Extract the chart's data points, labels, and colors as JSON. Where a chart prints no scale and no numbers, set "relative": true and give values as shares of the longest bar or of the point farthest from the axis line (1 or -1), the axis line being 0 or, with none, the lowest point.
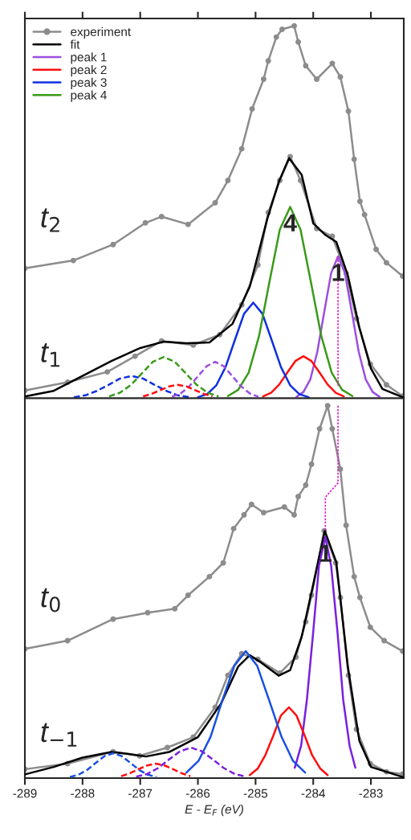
{
  "chart_data": [
    {
      "type": "line",
      "relative": true,
      "xlim": [
        -289,
        -282.43
      ],
      "xticks": [
        -289,
        -288,
        -287,
        -286,
        -285,
        -284,
        -283
      ],
      "tick_labels": false,
      "legend": "top left",
      "grid": false,
      "annotations": [
        "t$_{2}$",
        "t$_{1}$",
        {
          "text": "4",
          "x": -284.4,
          "y": 0.514
        },
        {
          "text": "1",
          "x": -283.57,
          "y": 0.381
        }
      ],
      "series": [
        {
          "name": "experiment",
          "color": "#8c8c8c",
          "marker": "circle",
          "x": [
            -289.0,
            -288.16,
            -287.47,
            -286.91,
            -286.63,
            -286.17,
            -285.7,
            -285.48,
            -285.24,
            -285.06,
            -284.86,
            -284.78,
            -284.64,
            -284.54,
            -284.33,
            -284.26,
            -284.13,
            -283.94,
            -283.67,
            -283.53,
            -283.39,
            -283.29,
            -283.19,
            -283.11,
            -282.91,
            -282.73,
            -282.45
          ],
          "values": [
            0.349,
            0.37,
            0.413,
            0.471,
            0.488,
            0.467,
            0.525,
            0.585,
            0.67,
            0.777,
            0.857,
            0.906,
            0.97,
            0.991,
            1.0,
            0.957,
            0.893,
            0.857,
            0.899,
            0.863,
            0.771,
            0.642,
            0.529,
            0.493,
            0.4,
            0.364,
            0.328
          ]
        },
        {
          "color": "#8c8c8c",
          "marker": "circle",
          "x": [
            -289.0,
            -288.26,
            -287.57,
            -287.09,
            -286.63,
            -286.08,
            -285.62,
            -285.24,
            -284.96,
            -284.78,
            -284.58,
            -284.4,
            -284.22,
            -283.94,
            -283.67,
            -283.43,
            -283.25,
            -283.01,
            -282.73,
            -282.45
          ],
          "values": [
            0.021,
            0.043,
            0.071,
            0.113,
            0.154,
            0.143,
            0.171,
            0.251,
            0.358,
            0.499,
            0.585,
            0.649,
            0.585,
            0.456,
            0.435,
            0.336,
            0.214,
            0.092,
            0.036,
            0.006
          ]
        },
        {
          "name": "fit",
          "color": "#000000",
          "x": [
            -289,
            -288.5,
            -288,
            -287.5,
            -287,
            -286.6,
            -286.2,
            -285.8,
            -285.4,
            -285.1,
            -284.8,
            -284.6,
            -284.42,
            -284.2,
            -284,
            -283.8,
            -283.6,
            -283.4,
            -283.2,
            -283,
            -282.8,
            -282.45
          ],
          "values": [
            0.005,
            0.02,
            0.06,
            0.1,
            0.135,
            0.152,
            0.148,
            0.15,
            0.2,
            0.3,
            0.48,
            0.58,
            0.645,
            0.6,
            0.47,
            0.44,
            0.42,
            0.33,
            0.19,
            0.08,
            0.025,
            0.003
          ]
        },
        {
          "name": "peak 1",
          "color": "#9b4fe0",
          "x": [
            -284.29,
            -284.17,
            -284.05,
            -283.93,
            -283.81,
            -283.69,
            -283.57,
            -283.45,
            -283.33,
            -283.21,
            -283.09,
            -282.97,
            -282.85
          ],
          "values": [
            0.004,
            0.017,
            0.051,
            0.124,
            0.231,
            0.336,
            0.381,
            0.336,
            0.231,
            0.124,
            0.051,
            0.017,
            0.004
          ]
        },
        {
          "name": "peak 2",
          "color": "#ff1010",
          "x": [
            -284.87,
            -284.73,
            -284.59,
            -284.45,
            -284.31,
            -284.17,
            -284.03,
            -283.89,
            -283.75,
            -283.61,
            -283.47
          ],
          "values": [
            0.005,
            0.015,
            0.037,
            0.069,
            0.1,
            0.113,
            0.1,
            0.069,
            0.037,
            0.015,
            0.005
          ]
        },
        {
          "name": "peak 3",
          "color": "#1030e0",
          "x": [
            -286.0,
            -285.84,
            -285.68,
            -285.52,
            -285.36,
            -285.2,
            -285.04,
            -284.88,
            -284.72,
            -284.56,
            -284.4,
            -284.24,
            -284.08
          ],
          "values": [
            0.003,
            0.011,
            0.035,
            0.084,
            0.156,
            0.227,
            0.257,
            0.227,
            0.156,
            0.084,
            0.035,
            0.011,
            0.003
          ]
        },
        {
          "name": "peak 4",
          "color": "#3a9a1a",
          "x": [
            -285.48,
            -285.3,
            -285.12,
            -284.94,
            -284.76,
            -284.58,
            -284.4,
            -284.22,
            -284.04,
            -283.86,
            -283.68,
            -283.5,
            -283.32
          ],
          "values": [
            0.006,
            0.023,
            0.069,
            0.167,
            0.312,
            0.453,
            0.514,
            0.453,
            0.312,
            0.167,
            0.069,
            0.023,
            0.006
          ]
        },
        {
          "color": "#3a9a1a",
          "line_style": "dashed",
          "x": [
            -287.54,
            -287.35,
            -287.16,
            -286.97,
            -286.78,
            -286.59,
            -286.4,
            -286.21,
            -286.02,
            -285.83,
            -285.64
          ],
          "values": [
            0.005,
            0.015,
            0.036,
            0.067,
            0.098,
            0.111,
            0.098,
            0.067,
            0.036,
            0.015,
            0.005
          ]
        },
        {
          "color": "#1030e0",
          "line_style": "dashed",
          "x": [
            -288.15,
            -287.95,
            -287.75,
            -287.55,
            -287.35,
            -287.15,
            -286.95,
            -286.75,
            -286.55,
            -286.35,
            -286.15
          ],
          "values": [
            0.003,
            0.008,
            0.02,
            0.036,
            0.053,
            0.06,
            0.053,
            0.036,
            0.02,
            0.008,
            0.003
          ]
        },
        {
          "color": "#9b4fe0",
          "line_style": "dashed",
          "x": [
            -286.45,
            -286.3,
            -286.15,
            -286.0,
            -285.85,
            -285.7,
            -285.55,
            -285.4,
            -285.25,
            -285.1,
            -284.95
          ],
          "values": [
            0.004,
            0.013,
            0.032,
            0.059,
            0.086,
            0.098,
            0.086,
            0.059,
            0.032,
            0.013,
            0.004
          ]
        },
        {
          "color": "#ff1010",
          "line_style": "dashed",
          "x": [
            -286.95,
            -286.8,
            -286.65,
            -286.5,
            -286.35,
            -286.2,
            -286.05,
            -285.9,
            -285.75
          ],
          "values": [
            0.005,
            0.012,
            0.022,
            0.032,
            0.036,
            0.032,
            0.022,
            0.012,
            0.005
          ]
        },
        {
          "color": "#e020c0",
          "line_style": "dotted",
          "x": [
            -283.57,
            -283.57
          ],
          "values": [
            0.381,
            0.03
          ]
        }
      ]
    },
    {
      "type": "line",
      "relative": true,
      "xlim": [
        -289,
        -282.43
      ],
      "xticks": [
        -289,
        -288,
        -287,
        -286,
        -285,
        -284,
        -283
      ],
      "tick_labels": "x",
      "xlabel": "E - E$_{F}$ (eV)",
      "grid": false,
      "annotations": [
        "t$_{0}$",
        "t$_{−1}$",
        {
          "text": "1",
          "x": -283.79,
          "y": 0.647
        }
      ],
      "series": [
        {
          "color": "#8c8c8c",
          "marker": "circle",
          "x": [
            -289.0,
            -288.26,
            -287.47,
            -286.87,
            -286.4,
            -286.17,
            -285.8,
            -285.56,
            -285.38,
            -285.2,
            -285.07,
            -284.86,
            -284.5,
            -284.33,
            -284.26,
            -284.13,
            -284.03,
            -283.89,
            -283.75,
            -283.67,
            -283.53,
            -283.43,
            -283.29,
            -283.19,
            -283.01,
            -282.77,
            -282.45
          ],
          "values": [
            0.347,
            0.369,
            0.427,
            0.444,
            0.455,
            0.491,
            0.541,
            0.578,
            0.67,
            0.707,
            0.735,
            0.713,
            0.728,
            0.707,
            0.756,
            0.787,
            0.843,
            0.938,
            1.0,
            0.938,
            0.83,
            0.679,
            0.541,
            0.485,
            0.405,
            0.369,
            0.341
          ]
        },
        {
          "color": "#8c8c8c",
          "marker": "circle",
          "x": [
            -289.0,
            -288.26,
            -287.47,
            -287.01,
            -286.53,
            -286.08,
            -285.7,
            -285.48,
            -285.24,
            -284.96,
            -284.58,
            -284.3,
            -284.13,
            -284.03,
            -283.81,
            -283.61,
            -283.53,
            -283.39,
            -283.25,
            -283.01,
            -282.73,
            -282.45
          ],
          "values": [
            0.024,
            0.039,
            0.071,
            0.06,
            0.082,
            0.11,
            0.19,
            0.276,
            0.334,
            0.319,
            0.282,
            0.325,
            0.42,
            0.491,
            0.664,
            0.578,
            0.485,
            0.276,
            0.131,
            0.039,
            0.017,
            0.011
          ]
        },
        {
          "color": "#000000",
          "x": [
            -289,
            -288.5,
            -288,
            -287.5,
            -287.2,
            -286.9,
            -286.5,
            -286,
            -285.6,
            -285.3,
            -285.1,
            -284.9,
            -284.6,
            -284.4,
            -284.2,
            -284,
            -283.8,
            -283.6,
            -283.4,
            -283.2,
            -283,
            -282.45
          ],
          "values": [
            0.01,
            0.03,
            0.055,
            0.07,
            0.065,
            0.058,
            0.07,
            0.11,
            0.2,
            0.3,
            0.33,
            0.31,
            0.275,
            0.29,
            0.38,
            0.52,
            0.664,
            0.58,
            0.3,
            0.1,
            0.03,
            0.003
          ]
        },
        {
          "color": "#7a1fe0",
          "x": [
            -284.32,
            -284.21,
            -284.11,
            -284.0,
            -283.9,
            -283.79,
            -283.69,
            -283.58,
            -283.48,
            -283.37,
            -283.27
          ],
          "values": [
            0.028,
            0.087,
            0.21,
            0.393,
            0.571,
            0.647,
            0.571,
            0.393,
            0.21,
            0.087,
            0.028
          ]
        },
        {
          "color": "#ff1010",
          "x": [
            -285.1,
            -284.96,
            -284.83,
            -284.69,
            -284.56,
            -284.42,
            -284.29,
            -284.15,
            -284.02,
            -283.88,
            -283.75
          ],
          "values": [
            0.008,
            0.026,
            0.062,
            0.115,
            0.168,
            0.19,
            0.168,
            0.115,
            0.062,
            0.026,
            0.008
          ]
        },
        {
          "color": "#1a50e0",
          "x": [
            -286.2,
            -285.99,
            -285.78,
            -285.58,
            -285.37,
            -285.17,
            -284.97,
            -284.76,
            -284.55,
            -284.35,
            -284.14
          ],
          "values": [
            0.015,
            0.046,
            0.111,
            0.207,
            0.301,
            0.341,
            0.301,
            0.207,
            0.111,
            0.046,
            0.015
          ]
        },
        {
          "color": "#1a50e0",
          "line_style": "dashed",
          "x": [
            -288.22,
            -288.07,
            -287.92,
            -287.77,
            -287.62,
            -287.47,
            -287.32,
            -287.17,
            -287.02,
            -286.87,
            -286.72
          ],
          "values": [
            0.003,
            0.009,
            0.022,
            0.041,
            0.059,
            0.067,
            0.059,
            0.041,
            0.022,
            0.009,
            0.003
          ]
        },
        {
          "color": "#7a1fe0",
          "line_style": "dashed",
          "x": [
            -287.07,
            -286.88,
            -286.69,
            -286.5,
            -286.31,
            -286.12,
            -285.93,
            -285.74,
            -285.55,
            -285.36,
            -285.17
          ],
          "values": [
            0.004,
            0.011,
            0.027,
            0.05,
            0.072,
            0.082,
            0.072,
            0.05,
            0.027,
            0.011,
            0.004
          ]
        },
        {
          "color": "#ff1010",
          "line_style": "dashed",
          "x": [
            -287.33,
            -287.18,
            -287.03,
            -286.88,
            -286.73,
            -286.58,
            -286.43,
            -286.28,
            -286.13
          ],
          "values": [
            0.005,
            0.013,
            0.024,
            0.034,
            0.039,
            0.034,
            0.024,
            0.013,
            0.005
          ]
        },
        {
          "color": "#e020c0",
          "line_style": "dotted",
          "x": [
            -283.57,
            -283.57,
            -283.79,
            -283.79
          ],
          "values": [
            1.0,
            0.793,
            0.754,
            0.664
          ]
        }
      ]
    }
  ]
}
